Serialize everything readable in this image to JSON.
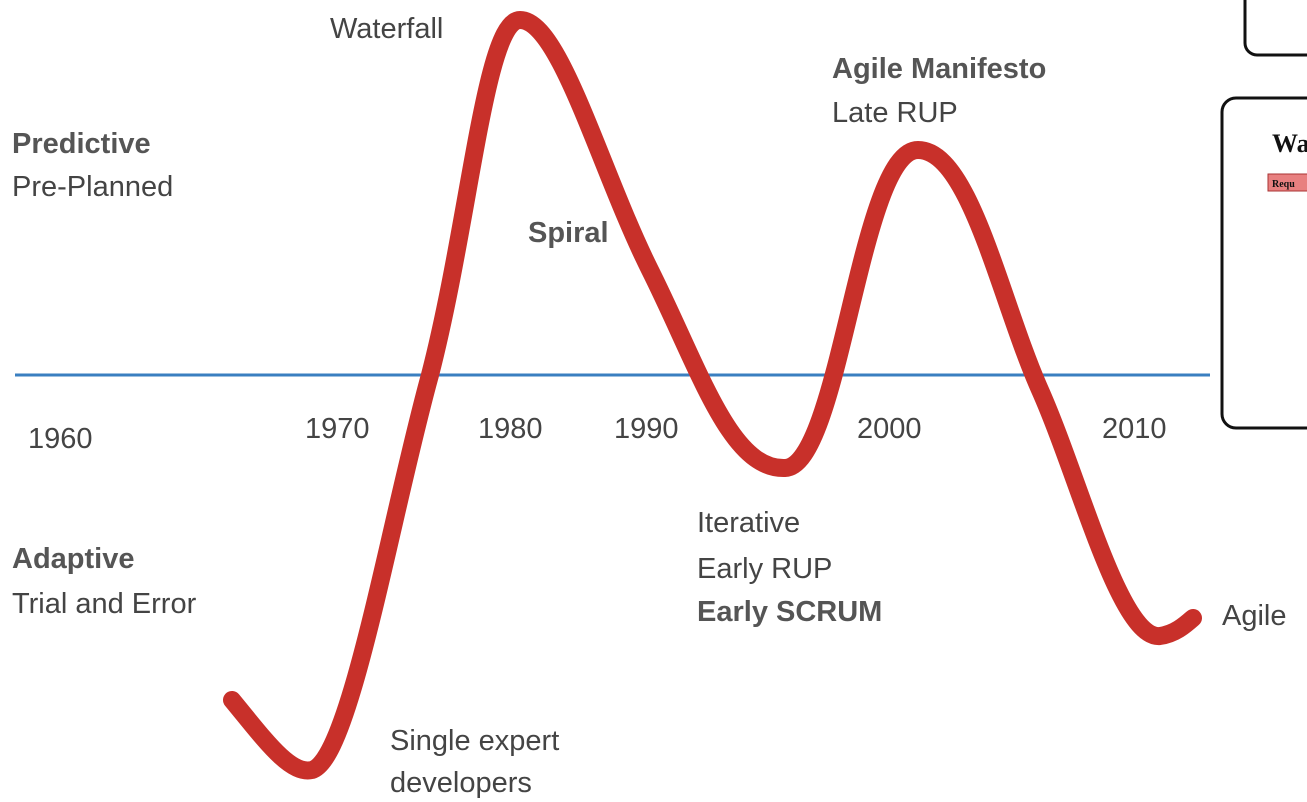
{
  "labels": {
    "waterfall": "Waterfall",
    "agile_manifesto": "Agile Manifesto",
    "late_rup": "Late RUP",
    "predictive": "Predictive",
    "pre_planned": "Pre-Planned",
    "spiral": "Spiral",
    "iterative": "Iterative",
    "early_rup": "Early RUP",
    "early_scrum": "Early SCRUM",
    "adaptive": "Adaptive",
    "trial_and_error": "Trial and Error",
    "single_expert": "Single expert",
    "developers": "developers",
    "agile": "Agile"
  },
  "decades": [
    "1960",
    "1970",
    "1980",
    "1990",
    "2000",
    "2010"
  ],
  "side_panel": {
    "title": "Wa",
    "tag": "Requ"
  }
}
